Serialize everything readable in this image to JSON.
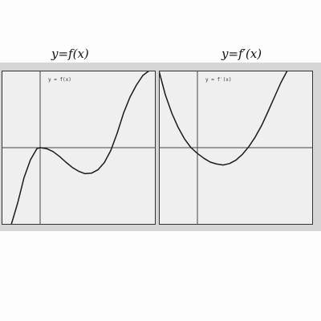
{
  "captions": {
    "left": "y=f(x)",
    "right": "y=f′(x)"
  },
  "chart_data": [
    {
      "type": "line",
      "inset_label": "y = f(x)",
      "xlim": [
        -1.2,
        3.6
      ],
      "ylim": [
        -1.6,
        1.6
      ],
      "grid": false,
      "series": [
        {
          "x": [
            -0.9,
            -0.7,
            -0.5,
            -0.3,
            -0.1,
            0.0,
            0.2,
            0.4,
            0.6,
            0.8,
            1.0,
            1.2,
            1.4,
            1.6,
            1.8,
            2.0,
            2.2,
            2.4,
            2.6,
            2.8,
            3.0,
            3.2,
            3.4
          ],
          "y": [
            -1.6,
            -1.15,
            -0.62,
            -0.25,
            -0.02,
            0.0,
            -0.02,
            -0.08,
            -0.18,
            -0.3,
            -0.41,
            -0.49,
            -0.54,
            -0.53,
            -0.46,
            -0.31,
            -0.06,
            0.3,
            0.72,
            1.05,
            1.3,
            1.5,
            1.6
          ]
        }
      ]
    },
    {
      "type": "line",
      "inset_label": "y = f′(x)",
      "xlim": [
        -1.2,
        3.6
      ],
      "ylim": [
        -1.6,
        1.6
      ],
      "grid": false,
      "series": [
        {
          "x": [
            -1.2,
            -1.0,
            -0.8,
            -0.6,
            -0.4,
            -0.2,
            0.0,
            0.2,
            0.4,
            0.6,
            0.8,
            1.0,
            1.2,
            1.4,
            1.6,
            1.8,
            2.0,
            2.2,
            2.4,
            2.6,
            2.8,
            3.0,
            3.2,
            3.4
          ],
          "y": [
            1.6,
            1.1,
            0.72,
            0.42,
            0.18,
            0.0,
            -0.12,
            -0.22,
            -0.3,
            -0.34,
            -0.36,
            -0.33,
            -0.26,
            -0.14,
            0.02,
            0.22,
            0.46,
            0.75,
            1.05,
            1.35,
            1.6,
            1.6,
            1.6,
            1.6
          ]
        }
      ]
    }
  ]
}
